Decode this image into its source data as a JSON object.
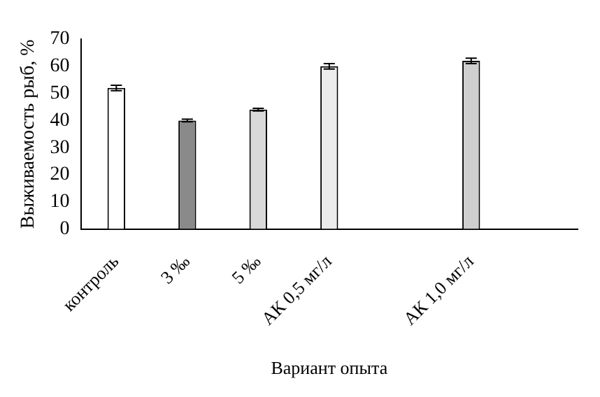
{
  "chart_data": {
    "type": "bar",
    "xlabel": "Вариант опыта",
    "ylabel": "Выживаемость рыб, %",
    "categories": [
      "контроль",
      "3 ‰",
      "5 ‰",
      "АК 0,5 мг/л",
      null,
      "АК 1,0 мг/л",
      null
    ],
    "values": [
      52,
      40,
      44,
      60,
      null,
      62,
      null
    ],
    "errors": [
      1,
      0.5,
      0.5,
      1,
      null,
      1,
      null
    ],
    "colors": [
      "#ffffff",
      "#8a8a8a",
      "#d9d9d9",
      "#ececec",
      null,
      "#cfcfcf",
      null
    ],
    "ylim": [
      0,
      70
    ],
    "yticks": [
      0,
      10,
      20,
      30,
      40,
      50,
      60,
      70
    ],
    "grid": false,
    "legend": false
  }
}
